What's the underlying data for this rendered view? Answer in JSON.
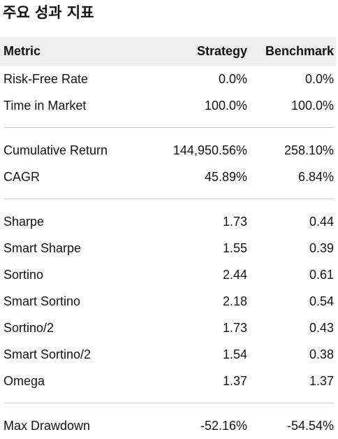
{
  "title": "주요 성과 지표",
  "table": {
    "headers": {
      "metric": "Metric",
      "strategy": "Strategy",
      "benchmark": "Benchmark"
    },
    "groups": [
      [
        {
          "metric": "Risk-Free Rate",
          "strategy": "0.0%",
          "benchmark": "0.0%"
        },
        {
          "metric": "Time in Market",
          "strategy": "100.0%",
          "benchmark": "100.0%"
        }
      ],
      [
        {
          "metric": "Cumulative Return",
          "strategy": "144,950.56%",
          "benchmark": "258.10%"
        },
        {
          "metric": "CAGR",
          "strategy": "45.89%",
          "benchmark": "6.84%"
        }
      ],
      [
        {
          "metric": "Sharpe",
          "strategy": "1.73",
          "benchmark": "0.44"
        },
        {
          "metric": "Smart Sharpe",
          "strategy": "1.55",
          "benchmark": "0.39"
        },
        {
          "metric": "Sortino",
          "strategy": "2.44",
          "benchmark": "0.61"
        },
        {
          "metric": "Smart Sortino",
          "strategy": "2.18",
          "benchmark": "0.54"
        },
        {
          "metric": "Sortino/2",
          "strategy": "1.73",
          "benchmark": "0.43"
        },
        {
          "metric": "Smart Sortino/2",
          "strategy": "1.54",
          "benchmark": "0.38"
        },
        {
          "metric": "Omega",
          "strategy": "1.37",
          "benchmark": "1.37"
        }
      ],
      [
        {
          "metric": "Max Drawdown",
          "strategy": "-52.16%",
          "benchmark": "-54.54%"
        }
      ]
    ]
  }
}
